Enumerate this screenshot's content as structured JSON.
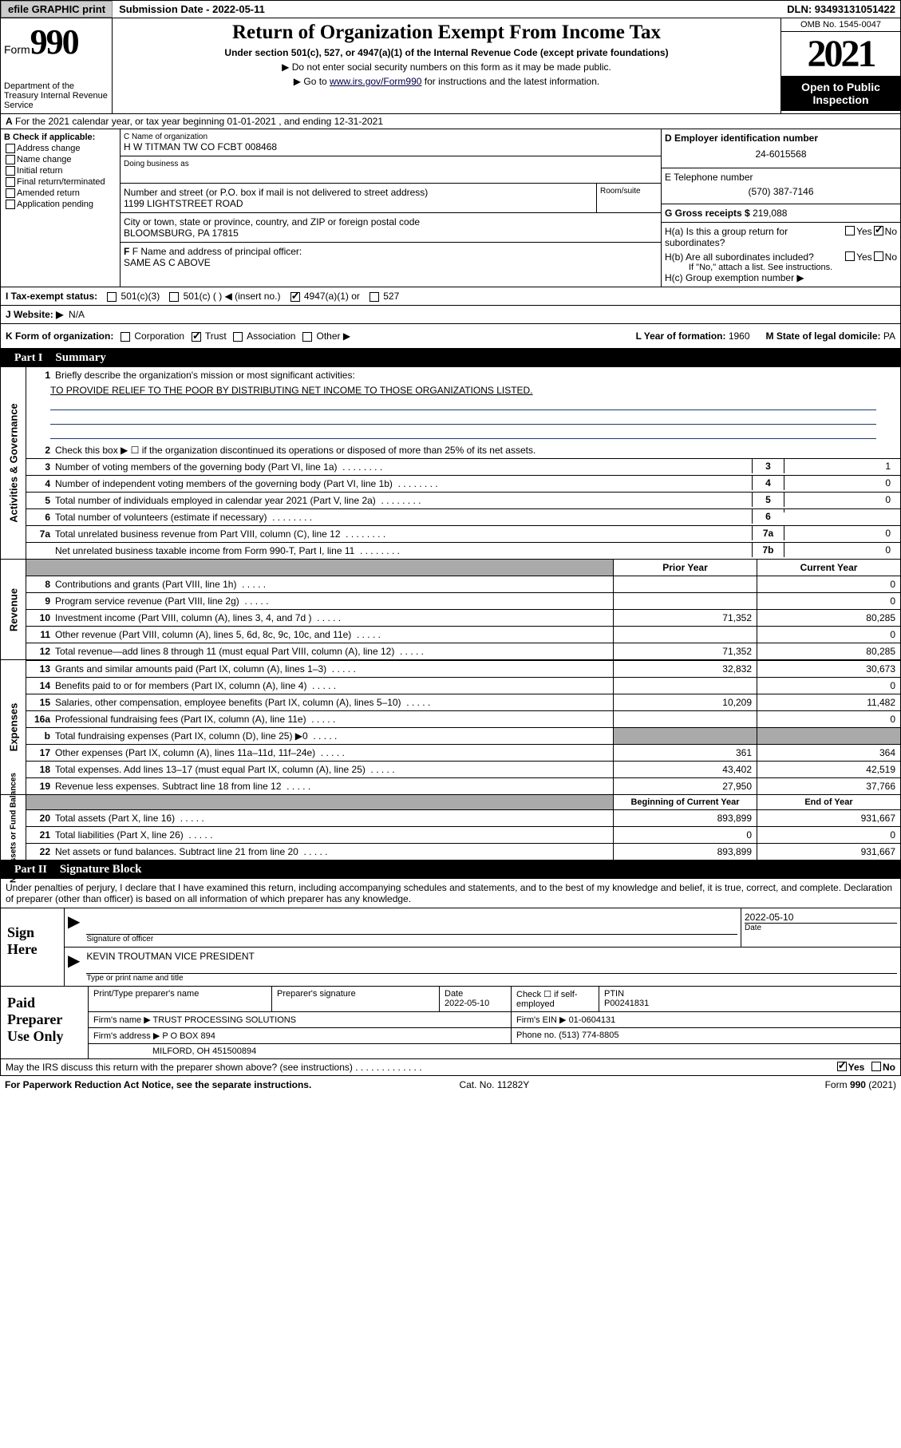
{
  "topbar": {
    "efile_btn": "efile GRAPHIC print",
    "sub_label": "Submission Date - 2022-05-11",
    "dln": "DLN: 93493131051422"
  },
  "header": {
    "form_word": "Form",
    "form_num": "990",
    "dept": "Department of the Treasury Internal Revenue Service",
    "title": "Return of Organization Exempt From Income Tax",
    "subtitle": "Under section 501(c), 527, or 4947(a)(1) of the Internal Revenue Code (except private foundations)",
    "instr1": "▶ Do not enter social security numbers on this form as it may be made public.",
    "instr2_pre": "▶ Go to ",
    "instr2_link": "www.irs.gov/Form990",
    "instr2_post": " for instructions and the latest information.",
    "omb": "OMB No. 1545-0047",
    "year": "2021",
    "open_public": "Open to Public Inspection"
  },
  "section_a": "For the 2021 calendar year, or tax year beginning 01-01-2021    , and ending 12-31-2021",
  "box_b": {
    "hdr": "B Check if applicable:",
    "opts": [
      "Address change",
      "Name change",
      "Initial return",
      "Final return/terminated",
      "Amended return",
      "Application pending"
    ]
  },
  "box_c": {
    "label": "C Name of organization",
    "name": "H W TITMAN TW CO FCBT 008468",
    "dba_label": "Doing business as",
    "addr_label": "Number and street (or P.O. box if mail is not delivered to street address)",
    "addr": "1199 LIGHTSTREET ROAD",
    "room_label": "Room/suite",
    "city_label": "City or town, state or province, country, and ZIP or foreign postal code",
    "city": "BLOOMSBURG, PA  17815"
  },
  "box_f": {
    "label": "F Name and address of principal officer:",
    "val": "SAME AS C ABOVE"
  },
  "box_d": {
    "label": "D Employer identification number",
    "val": "24-6015568"
  },
  "box_e": {
    "label": "E Telephone number",
    "val": "(570) 387-7146"
  },
  "box_g": {
    "label": "G Gross receipts $",
    "val": "219,088"
  },
  "box_h": {
    "ha": "H(a)  Is this a group return for subordinates?",
    "hb": "H(b)  Are all subordinates included?",
    "hb_note": "If \"No,\" attach a list. See instructions.",
    "hc": "H(c)  Group exemption number ▶",
    "yes": "Yes",
    "no": "No"
  },
  "row_i": {
    "label": "I   Tax-exempt status:",
    "o1": "501(c)(3)",
    "o2": "501(c) (  ) ◀ (insert no.)",
    "o3": "4947(a)(1) or",
    "o4": "527"
  },
  "row_j": {
    "label": "J   Website: ▶",
    "val": "N/A"
  },
  "row_k": {
    "label": "K Form of organization:",
    "opts": [
      "Corporation",
      "Trust",
      "Association",
      "Other ▶"
    ],
    "checked": 1,
    "l_label": "L Year of formation: ",
    "l_val": "1960",
    "m_label": "M State of legal domicile: ",
    "m_val": "PA"
  },
  "part1": {
    "num": "Part I",
    "title": "Summary",
    "side1": "Activities & Governance",
    "side2": "Revenue",
    "side3": "Expenses",
    "side4": "Net Assets or Fund Balances",
    "q1": "Briefly describe the organization's mission or most significant activities:",
    "q1_val": "TO PROVIDE RELIEF TO THE POOR BY DISTRIBUTING NET INCOME TO THOSE ORGANIZATIONS LISTED.",
    "q2": "Check this box ▶ ☐  if the organization discontinued its operations or disposed of more than 25% of its net assets.",
    "lines_gov": [
      {
        "n": "3",
        "t": "Number of voting members of the governing body (Part VI, line 1a)",
        "b": "3",
        "v": "1"
      },
      {
        "n": "4",
        "t": "Number of independent voting members of the governing body (Part VI, line 1b)",
        "b": "4",
        "v": "0"
      },
      {
        "n": "5",
        "t": "Total number of individuals employed in calendar year 2021 (Part V, line 2a)",
        "b": "5",
        "v": "0"
      },
      {
        "n": "6",
        "t": "Total number of volunteers (estimate if necessary)",
        "b": "6",
        "v": ""
      },
      {
        "n": "7a",
        "t": "Total unrelated business revenue from Part VIII, column (C), line 12",
        "b": "7a",
        "v": "0"
      },
      {
        "n": "",
        "t": "Net unrelated business taxable income from Form 990-T, Part I, line 11",
        "b": "7b",
        "v": "0"
      }
    ],
    "col_hdr1": "Prior Year",
    "col_hdr2": "Current Year",
    "rev_rows": [
      {
        "n": "8",
        "t": "Contributions and grants (Part VIII, line 1h)",
        "v1": "",
        "v2": "0"
      },
      {
        "n": "9",
        "t": "Program service revenue (Part VIII, line 2g)",
        "v1": "",
        "v2": "0"
      },
      {
        "n": "10",
        "t": "Investment income (Part VIII, column (A), lines 3, 4, and 7d )",
        "v1": "71,352",
        "v2": "80,285"
      },
      {
        "n": "11",
        "t": "Other revenue (Part VIII, column (A), lines 5, 6d, 8c, 9c, 10c, and 11e)",
        "v1": "",
        "v2": "0"
      },
      {
        "n": "12",
        "t": "Total revenue—add lines 8 through 11 (must equal Part VIII, column (A), line 12)",
        "v1": "71,352",
        "v2": "80,285"
      }
    ],
    "exp_rows": [
      {
        "n": "13",
        "t": "Grants and similar amounts paid (Part IX, column (A), lines 1–3)",
        "v1": "32,832",
        "v2": "30,673"
      },
      {
        "n": "14",
        "t": "Benefits paid to or for members (Part IX, column (A), line 4)",
        "v1": "",
        "v2": "0"
      },
      {
        "n": "15",
        "t": "Salaries, other compensation, employee benefits (Part IX, column (A), lines 5–10)",
        "v1": "10,209",
        "v2": "11,482"
      },
      {
        "n": "16a",
        "t": "Professional fundraising fees (Part IX, column (A), line 11e)",
        "v1": "",
        "v2": "0"
      },
      {
        "n": "b",
        "t": "Total fundraising expenses (Part IX, column (D), line 25) ▶0",
        "v1": "grey",
        "v2": "grey"
      },
      {
        "n": "17",
        "t": "Other expenses (Part IX, column (A), lines 11a–11d, 11f–24e)",
        "v1": "361",
        "v2": "364"
      },
      {
        "n": "18",
        "t": "Total expenses. Add lines 13–17 (must equal Part IX, column (A), line 25)",
        "v1": "43,402",
        "v2": "42,519"
      },
      {
        "n": "19",
        "t": "Revenue less expenses. Subtract line 18 from line 12",
        "v1": "27,950",
        "v2": "37,766"
      }
    ],
    "net_hdr1": "Beginning of Current Year",
    "net_hdr2": "End of Year",
    "net_rows": [
      {
        "n": "20",
        "t": "Total assets (Part X, line 16)",
        "v1": "893,899",
        "v2": "931,667"
      },
      {
        "n": "21",
        "t": "Total liabilities (Part X, line 26)",
        "v1": "0",
        "v2": "0"
      },
      {
        "n": "22",
        "t": "Net assets or fund balances. Subtract line 21 from line 20",
        "v1": "893,899",
        "v2": "931,667"
      }
    ]
  },
  "part2": {
    "num": "Part II",
    "title": "Signature Block"
  },
  "sig": {
    "intro": "Under penalties of perjury, I declare that I have examined this return, including accompanying schedules and statements, and to the best of my knowledge and belief, it is true, correct, and complete. Declaration of preparer (other than officer) is based on all information of which preparer has any knowledge.",
    "here": "Sign Here",
    "sig_label": "Signature of officer",
    "date_val": "2022-05-10",
    "date_label": "Date",
    "name_val": "KEVIN TROUTMAN  VICE PRESIDENT",
    "name_label": "Type or print name and title"
  },
  "prep": {
    "here": "Paid Preparer Use Only",
    "h1": "Print/Type preparer's name",
    "h2": "Preparer's signature",
    "h3": "Date",
    "h3v": "2022-05-10",
    "h4": "Check ☐ if self-employed",
    "h5": "PTIN",
    "h5v": "P00241831",
    "firm_name_l": "Firm's name    ▶",
    "firm_name": "TRUST PROCESSING SOLUTIONS",
    "firm_ein_l": "Firm's EIN ▶",
    "firm_ein": "01-0604131",
    "firm_addr_l": "Firm's address ▶",
    "firm_addr": "P O BOX 894",
    "firm_city": "MILFORD, OH  451500894",
    "phone_l": "Phone no.",
    "phone": "(513) 774-8805"
  },
  "footer": {
    "discuss": "May the IRS discuss this return with the preparer shown above? (see instructions)",
    "yes": "Yes",
    "no": "No",
    "paperwork": "For Paperwork Reduction Act Notice, see the separate instructions.",
    "cat": "Cat. No. 11282Y",
    "form": "Form 990 (2021)"
  }
}
